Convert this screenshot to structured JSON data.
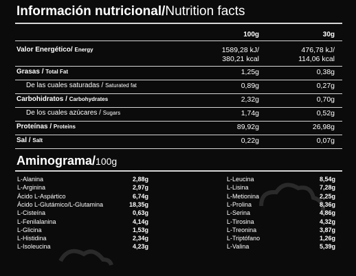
{
  "header": {
    "title_es": "Información nutricional/",
    "title_en": "Nutrition facts"
  },
  "table": {
    "columns": [
      "100g",
      "30g"
    ],
    "rows": [
      {
        "es": "Valor Energético/",
        "en": "Energy",
        "per_100g": [
          "1589,28 kJ/",
          "380,21 kcal"
        ],
        "per_serving": [
          "476,78 kJ/",
          "114,06 kcal"
        ],
        "bold": true
      },
      {
        "es": "Grasas /",
        "en": "Total Fat",
        "per_100g": [
          "1,25g"
        ],
        "per_serving": [
          "0,38g"
        ],
        "bold": true
      },
      {
        "es": "De las cuales saturadas /",
        "en": "Saturated fat",
        "per_100g": [
          "0,89g"
        ],
        "per_serving": [
          "0,27g"
        ],
        "bold": false
      },
      {
        "es": "Carbohidratos /",
        "en": "Carbohydrates",
        "per_100g": [
          "2,32g"
        ],
        "per_serving": [
          "0,70g"
        ],
        "bold": true
      },
      {
        "es": "De los cuales azúcares /",
        "en": "Sugars",
        "per_100g": [
          "1,74g"
        ],
        "per_serving": [
          "0,52g"
        ],
        "bold": false
      },
      {
        "es": "Proteínas /",
        "en": "Proteins",
        "per_100g": [
          "89,92g"
        ],
        "per_serving": [
          "26,98g"
        ],
        "bold": true
      },
      {
        "es": "Sal /",
        "en": "Salt",
        "per_100g": [
          "0,22g"
        ],
        "per_serving": [
          "0,07g"
        ],
        "bold": true
      }
    ]
  },
  "aminogram": {
    "title": "Aminograma/",
    "unit": "100g",
    "left": [
      [
        "L-Alanina",
        "2,88g"
      ],
      [
        "L-Arginina",
        "2,97g"
      ],
      [
        "Ácido L-Aspártico",
        "6,74g"
      ],
      [
        "Ácido L-Glutámico/L-Glutamina",
        "18,35g"
      ],
      [
        "L-Cisteína",
        "0,63g"
      ],
      [
        "L-Fenilalanina",
        "4,14g"
      ],
      [
        "L-Glicina",
        "1,53g"
      ],
      [
        "L-Histidina",
        "2,34g"
      ],
      [
        "L-Isoleucina",
        "4,23g"
      ]
    ],
    "right": [
      [
        "L-Leucina",
        "8,54g"
      ],
      [
        "L-Lisina",
        "7,28g"
      ],
      [
        "L-Metionina",
        "2,25g"
      ],
      [
        "L-Prolina",
        "8,36g"
      ],
      [
        "L-Serina",
        "4,86g"
      ],
      [
        "L-Tirosina",
        "4,32g"
      ],
      [
        "L-Treonina",
        "3,87g"
      ],
      [
        "L-Triptófano",
        "1,26g"
      ],
      [
        "L-Valina",
        "5,39g"
      ]
    ]
  }
}
